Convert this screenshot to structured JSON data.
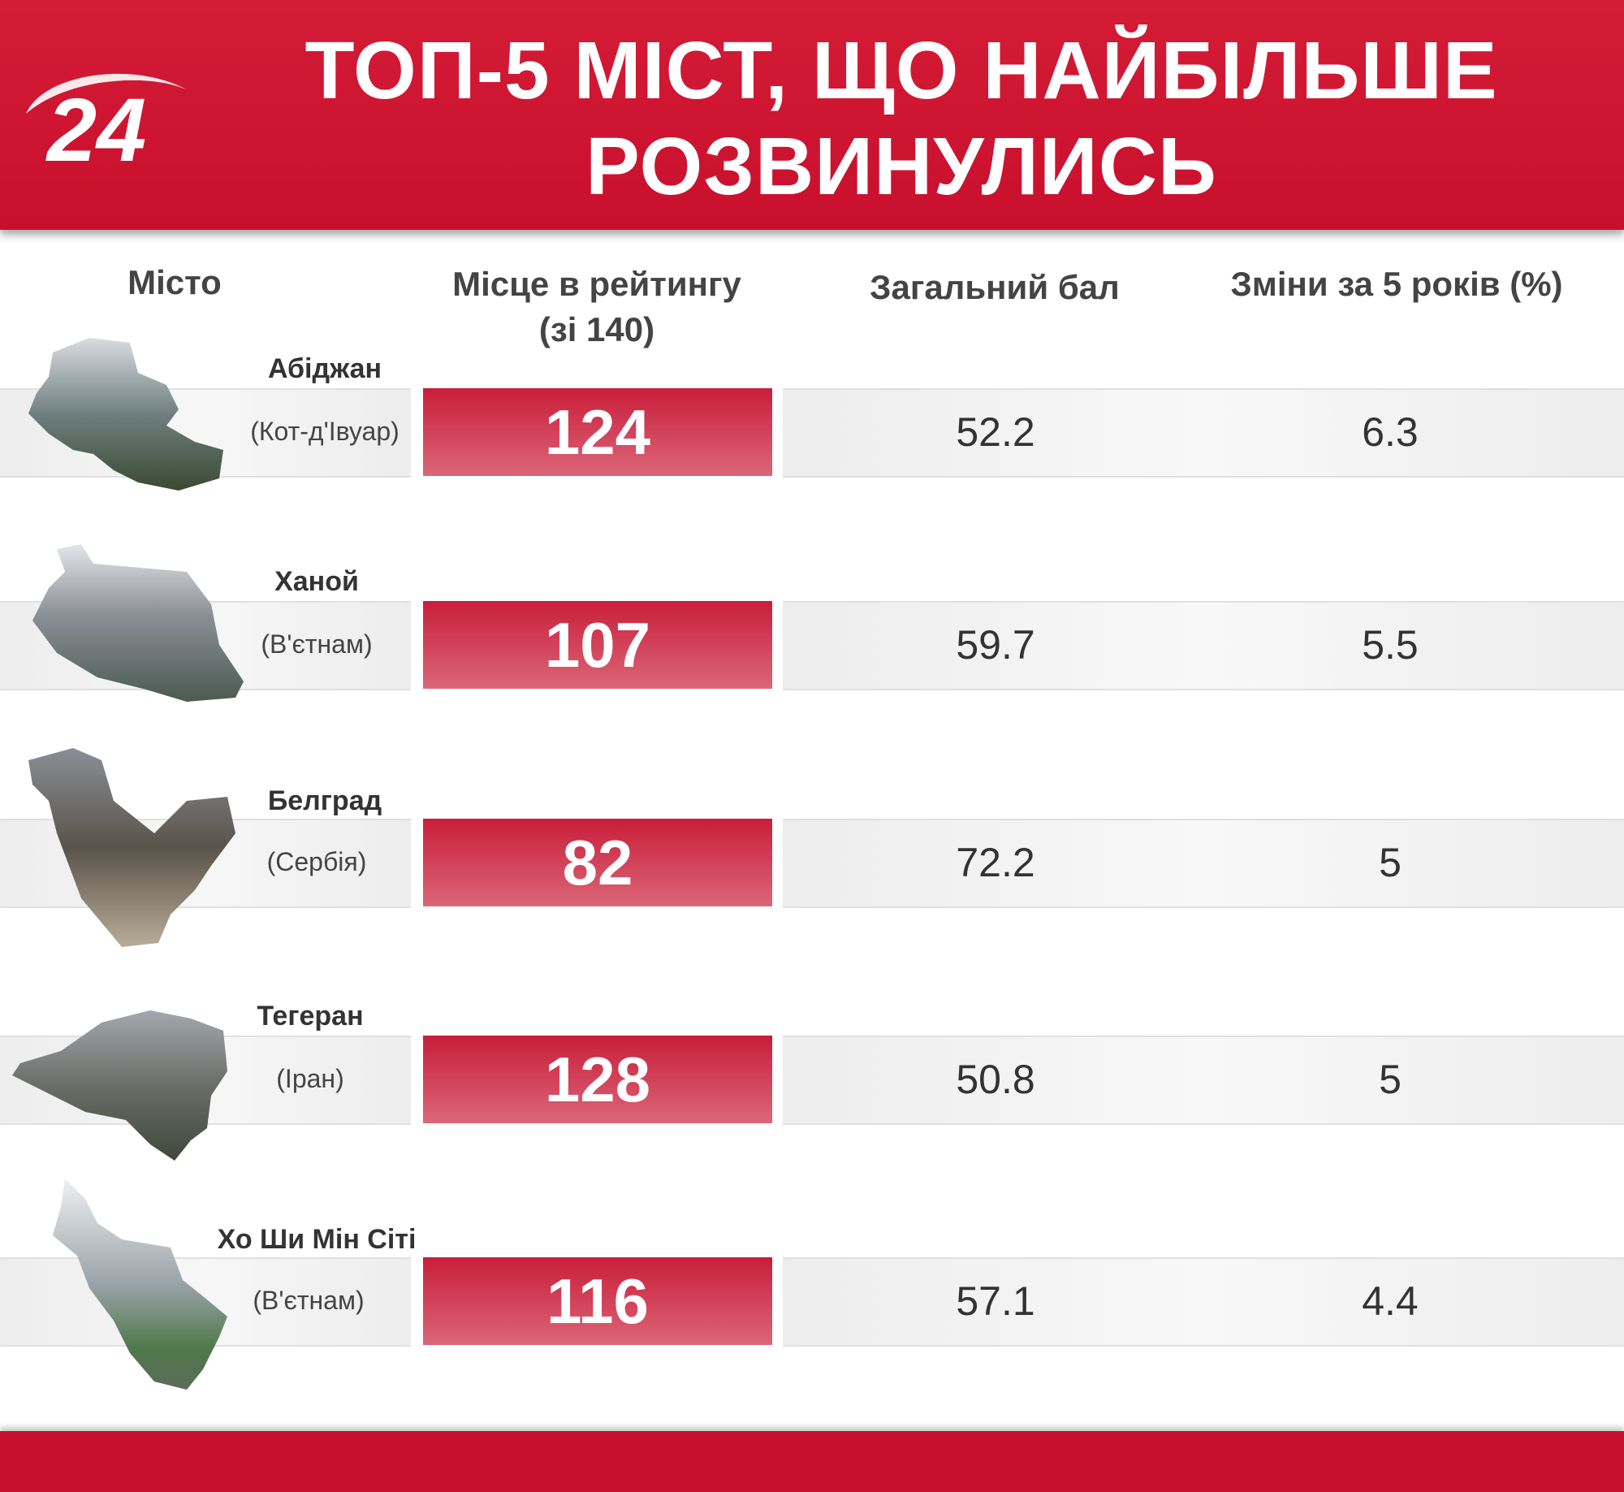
{
  "header": {
    "logo_text": "24",
    "title_line1": "ТОП-5 МІСТ, ЩО НАЙБІЛЬШЕ",
    "title_line2": "РОЗВИНУЛИСЬ"
  },
  "columns": {
    "city": "Місто",
    "rank_line1": "Місце в рейтингу",
    "rank_line2": "(зі 140)",
    "score": "Загальний бал",
    "change": "Зміни за 5 років (%)"
  },
  "rows": [
    {
      "city": "Абіджан",
      "country": "(Кот-д'Івуар)",
      "rank": "124",
      "score": "52.2",
      "change": "6.3"
    },
    {
      "city": "Ханой",
      "country": "(В'єтнам)",
      "rank": "107",
      "score": "59.7",
      "change": "5.5"
    },
    {
      "city": "Белград",
      "country": "(Сербія)",
      "rank": "82",
      "score": "72.2",
      "change": "5"
    },
    {
      "city": "Тегеран",
      "country": "(Іран)",
      "rank": "128",
      "score": "50.8",
      "change": "5"
    },
    {
      "city": "Хо Ши Мін Сіті",
      "country": "(В'єтнам)",
      "rank": "116",
      "score": "57.1",
      "change": "4.4"
    }
  ],
  "colors": {
    "brand_red": "#c8102e",
    "rank_gradient_top": "#c91e3a",
    "rank_gradient_bottom": "#db6678"
  }
}
